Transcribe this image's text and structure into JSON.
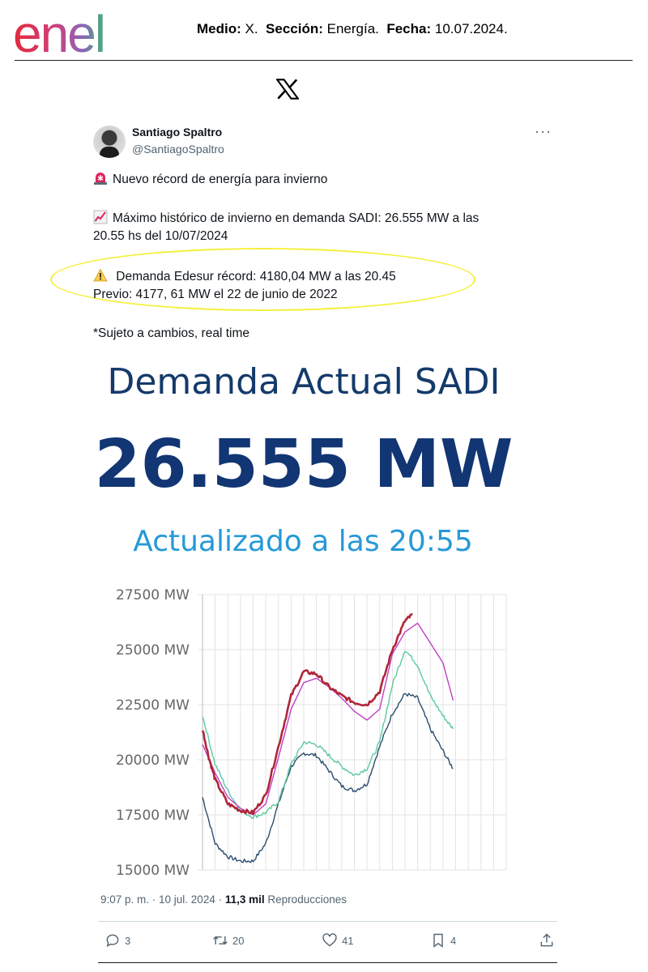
{
  "header": {
    "brand": "enel",
    "medio_label": "Medio:",
    "medio_value": "X.",
    "seccion_label": "Sección:",
    "seccion_value": "Energía.",
    "fecha_label": "Fecha:",
    "fecha_value": "10.07.2024."
  },
  "tweet": {
    "author_name": "Santiago Spaltro",
    "author_handle": "@SantiagoSpaltro",
    "more_label": "···",
    "line1": "Nuevo récord de energía para invierno",
    "line2a": "Máximo histórico de invierno en demanda SADI: 26.555 MW a las",
    "line2b": "20.55 hs del 10/07/2024",
    "line3a": " Demanda Edesur récord: 4180,04 MW a las  20.45",
    "line3b": "Previo: 4177, 61 MW el 22 de junio de 2022",
    "line4": "*Sujeto a cambios, real time",
    "timestamp": "9:07 p. m. · 10 jul. 2024 ·",
    "views_count": "11,3 mil",
    "views_label": "Reproducciones",
    "replies": "3",
    "reposts": "20",
    "likes": "41",
    "bookmarks": "4"
  },
  "dashboard": {
    "title": "Demanda Actual SADI",
    "value": "26.555 MW",
    "updated": "Actualizado a las 20:55"
  },
  "colors": {
    "brand_red": "#e22a3b",
    "today": "#b0253a",
    "series_purple": "#c03fc5",
    "series_teal": "#5cc99e",
    "series_navy": "#2b4d6e",
    "highlight": "#f4f03c"
  },
  "chart_data": {
    "type": "line",
    "y_ticks": [
      "27500 MW",
      "25000 MW",
      "22500 MW",
      "20000 MW",
      "17500 MW",
      "15000 MW"
    ],
    "ylim": [
      15000,
      27500
    ],
    "xlim": [
      0,
      24
    ],
    "grid": true,
    "series": [
      {
        "color": "#b0253a",
        "width": 2.6,
        "jitter": true,
        "points": [
          [
            0,
            21400
          ],
          [
            0.5,
            20100
          ],
          [
            1,
            19100
          ],
          [
            2,
            18000
          ],
          [
            3,
            17700
          ],
          [
            4,
            17600
          ],
          [
            5,
            18400
          ],
          [
            6,
            20600
          ],
          [
            7,
            22900
          ],
          [
            8,
            24000
          ],
          [
            9,
            23900
          ],
          [
            10,
            23300
          ],
          [
            11,
            22900
          ],
          [
            12,
            22600
          ],
          [
            13,
            22500
          ],
          [
            14,
            23100
          ],
          [
            15,
            25000
          ],
          [
            16,
            26300
          ],
          [
            16.6,
            26600
          ]
        ]
      },
      {
        "color": "#c03fc5",
        "width": 1.4,
        "jitter": false,
        "points": [
          [
            0,
            20700
          ],
          [
            1,
            19400
          ],
          [
            2,
            18300
          ],
          [
            3,
            17800
          ],
          [
            4,
            17500
          ],
          [
            5,
            18000
          ],
          [
            6,
            20100
          ],
          [
            7,
            22300
          ],
          [
            8,
            23500
          ],
          [
            9,
            23700
          ],
          [
            10,
            23300
          ],
          [
            11,
            22800
          ],
          [
            12,
            22200
          ],
          [
            13,
            21800
          ],
          [
            14,
            22300
          ],
          [
            15,
            24800
          ],
          [
            16,
            25800
          ],
          [
            17,
            26200
          ],
          [
            18,
            25300
          ],
          [
            19,
            24400
          ],
          [
            19.8,
            22700
          ]
        ]
      },
      {
        "color": "#5cc99e",
        "width": 1.4,
        "jitter": true,
        "points": [
          [
            0,
            22000
          ],
          [
            1,
            19800
          ],
          [
            2,
            18600
          ],
          [
            3,
            17700
          ],
          [
            4,
            17400
          ],
          [
            5,
            17600
          ],
          [
            6,
            18100
          ],
          [
            7,
            19800
          ],
          [
            8,
            20800
          ],
          [
            9,
            20700
          ],
          [
            10,
            20200
          ],
          [
            11,
            19700
          ],
          [
            12,
            19300
          ],
          [
            13,
            19600
          ],
          [
            14,
            20800
          ],
          [
            15,
            23400
          ],
          [
            16,
            25000
          ],
          [
            17,
            24300
          ],
          [
            18,
            22900
          ],
          [
            19,
            22000
          ],
          [
            19.8,
            21400
          ]
        ]
      },
      {
        "color": "#2b4d6e",
        "width": 1.4,
        "jitter": true,
        "points": [
          [
            0,
            18300
          ],
          [
            1,
            16200
          ],
          [
            2,
            15600
          ],
          [
            3,
            15400
          ],
          [
            4,
            15400
          ],
          [
            5,
            16200
          ],
          [
            6,
            18000
          ],
          [
            7,
            19700
          ],
          [
            8,
            20300
          ],
          [
            9,
            20200
          ],
          [
            10,
            19500
          ],
          [
            11,
            18800
          ],
          [
            12,
            18600
          ],
          [
            13,
            18900
          ],
          [
            14,
            20600
          ],
          [
            15,
            22100
          ],
          [
            16,
            23000
          ],
          [
            17,
            22800
          ],
          [
            18,
            21400
          ],
          [
            19,
            20400
          ],
          [
            19.8,
            19600
          ]
        ]
      }
    ]
  }
}
